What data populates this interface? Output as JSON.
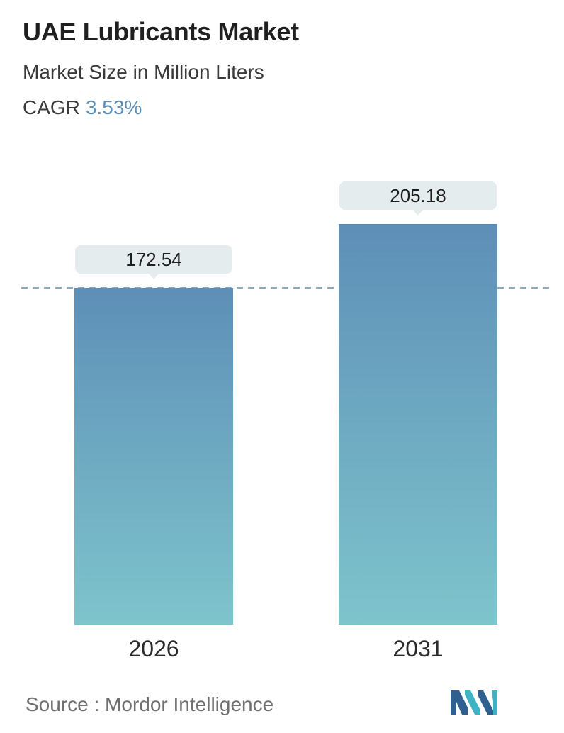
{
  "header": {
    "title": "UAE Lubricants Market",
    "subtitle": "Market Size in Million Liters",
    "cagr_label": "CAGR",
    "cagr_value": "3.53%"
  },
  "chart_data": {
    "type": "bar",
    "categories": [
      "2026",
      "2031"
    ],
    "values": [
      172.54,
      205.18
    ],
    "value_labels": [
      "172.54",
      "205.18"
    ],
    "title": "UAE Lubricants Market",
    "subtitle": "Market Size in Million Liters",
    "grid": false,
    "reference_line": "dashed line at the first bar's value",
    "colors": {
      "bar_top": "#5e8fb7",
      "bar_bottom": "#7ec4cc",
      "label_bg": "#e4ecee",
      "dash": "#5b8db5"
    }
  },
  "footer": {
    "source": "Source :  Mordor Intelligence",
    "logo_icon": "mordor-intelligence-logo-icon"
  }
}
